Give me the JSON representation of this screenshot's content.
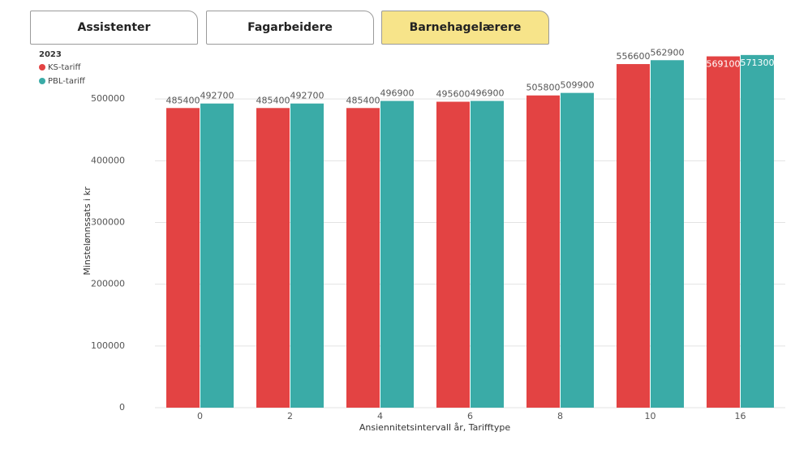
{
  "tabs": [
    "Assistenter",
    "Fagarbeidere",
    "Barnehagelærere"
  ],
  "chart_data": {
    "type": "bar",
    "legend_title": "2023",
    "x_label": "Ansiennitetsintervall år, Tarifftype",
    "y_label": "Minstelønnssats i kr",
    "categories": [
      "0",
      "2",
      "4",
      "6",
      "8",
      "10",
      "16"
    ],
    "series": [
      {
        "name": "KS-tariff",
        "color": "#e34343",
        "values": [
          485400,
          485400,
          485400,
          495600,
          505800,
          556600,
          569100
        ]
      },
      {
        "name": "PBL-tariff",
        "color": "#3aaba7",
        "values": [
          492700,
          492700,
          496900,
          496900,
          509900,
          562900,
          571300
        ]
      }
    ],
    "ylim": [
      0,
      600000
    ],
    "yticks": [
      0,
      100000,
      200000,
      300000,
      400000,
      500000
    ],
    "grid": true
  }
}
